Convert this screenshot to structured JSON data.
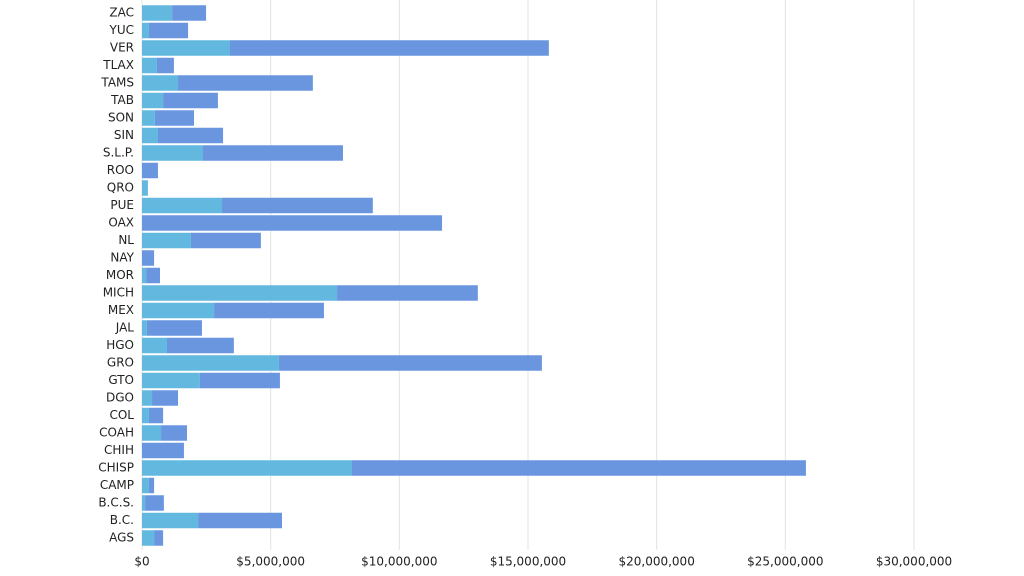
{
  "chart_data": {
    "type": "stacked_barh",
    "categories": [
      "ZAC",
      "YUC",
      "VER",
      "TLAX",
      "TAMS",
      "TAB",
      "SON",
      "SIN",
      "S.L.P.",
      "ROO",
      "QRO",
      "PUE",
      "OAX",
      "NL",
      "NAY",
      "MOR",
      "MICH",
      "MEX",
      "JAL",
      "HGO",
      "GRO",
      "GTO",
      "DGO",
      "COL",
      "COAH",
      "CHIH",
      "CHISP",
      "CAMP",
      "B.C.S.",
      "B.C.",
      "AGS"
    ],
    "series": [
      {
        "color": "#62b8de",
        "values": [
          1170000,
          270000,
          3420000,
          580000,
          1400000,
          820000,
          500000,
          620000,
          2370000,
          0,
          230000,
          3110000,
          0,
          1900000,
          0,
          160000,
          7580000,
          2800000,
          190000,
          970000,
          5320000,
          2250000,
          390000,
          270000,
          740000,
          0,
          8160000,
          270000,
          120000,
          2180000,
          470000
        ]
      },
      {
        "color": "#6a96e0",
        "values": [
          1320000,
          1520000,
          12390000,
          660000,
          5240000,
          2130000,
          1520000,
          2530000,
          5440000,
          620000,
          0,
          5860000,
          11660000,
          2720000,
          470000,
          540000,
          5470000,
          4270000,
          2140000,
          2600000,
          10220000,
          3110000,
          1010000,
          550000,
          1010000,
          1630000,
          17640000,
          200000,
          730000,
          3260000,
          350000
        ]
      }
    ],
    "xlim": [
      0,
      30000000
    ],
    "xticks": [
      {
        "value": 0,
        "label": "$0"
      },
      {
        "value": 5000000,
        "label": "$5,000,000"
      },
      {
        "value": 10000000,
        "label": "$10,000,000"
      },
      {
        "value": 15000000,
        "label": "$15,000,000"
      },
      {
        "value": 20000000,
        "label": "$20,000,000"
      },
      {
        "value": 25000000,
        "label": "$25,000,000"
      },
      {
        "value": 30000000,
        "label": "$30,000,000"
      }
    ],
    "grid": true
  }
}
